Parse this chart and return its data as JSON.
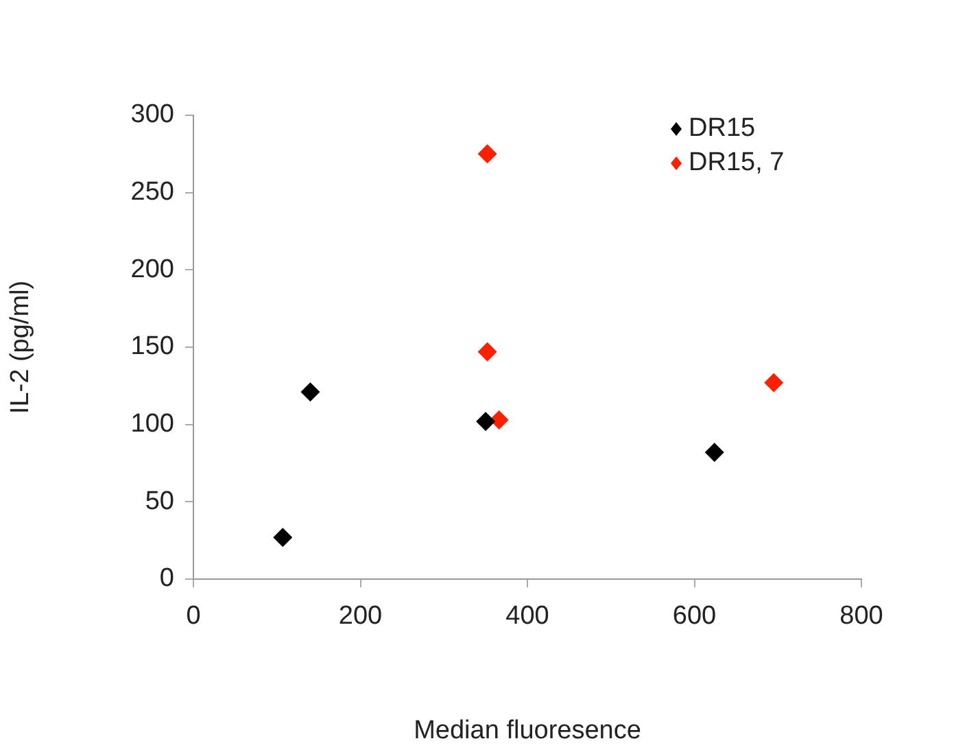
{
  "chart_data": {
    "type": "scatter",
    "xlabel": "Median fluoresence",
    "ylabel": "IL-2 (pg/ml)",
    "xlim": [
      0,
      800
    ],
    "xticks": [
      0,
      200,
      400,
      600,
      800
    ],
    "ylim": [
      0,
      300
    ],
    "yticks": [
      0,
      50,
      100,
      150,
      200,
      250,
      300
    ],
    "grid": false,
    "legend": "top right",
    "marker": "diamond",
    "series": [
      {
        "name": "DR15",
        "color": "#000000",
        "x": [
          107,
          140,
          350,
          624
        ],
        "values": [
          27,
          121,
          102,
          82
        ]
      },
      {
        "name": "DR15, 7",
        "color": "#ff2000",
        "x": [
          352,
          352,
          366,
          695
        ],
        "values": [
          275,
          147,
          103,
          127
        ]
      }
    ]
  }
}
